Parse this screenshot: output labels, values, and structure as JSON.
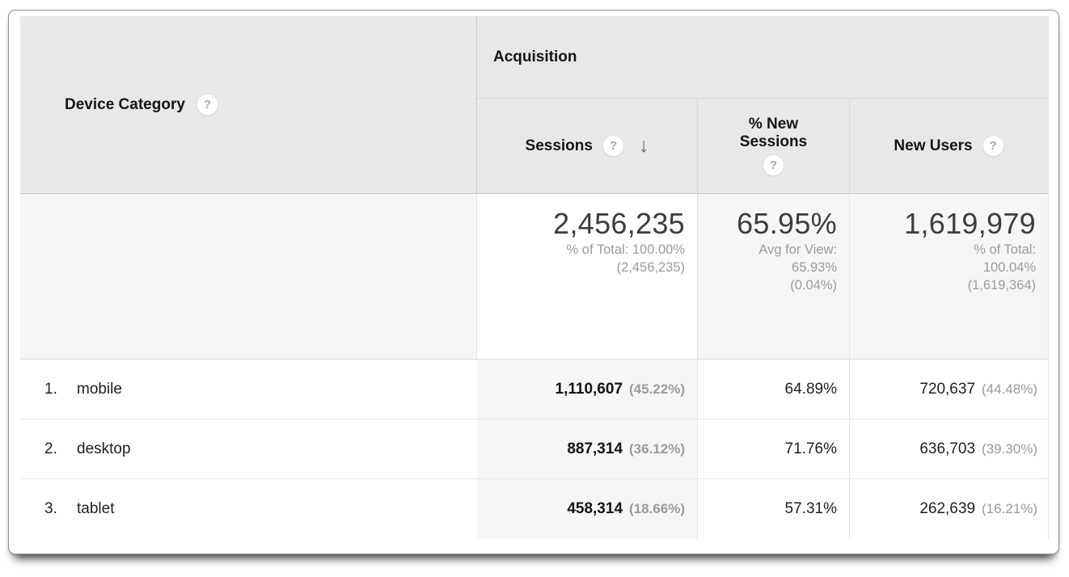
{
  "table": {
    "dimension_header": {
      "label": "Device Category",
      "help_icon": "?"
    },
    "group_header": {
      "label": "Acquisition"
    },
    "columns": {
      "sessions": {
        "label": "Sessions",
        "help_icon": "?",
        "sort_icon": "↓",
        "sort": "descending"
      },
      "new_sessions": {
        "label_line1": "% New",
        "label_line2": "Sessions",
        "help_icon": "?"
      },
      "new_users": {
        "label": "New Users",
        "help_icon": "?"
      }
    },
    "summary": {
      "sessions": {
        "value": "2,456,235",
        "sub": [
          "% of Total: 100.00%",
          "(2,456,235)"
        ]
      },
      "new_sessions": {
        "value": "65.95%",
        "sub": [
          "Avg for View:",
          "65.93%",
          "(0.04%)"
        ]
      },
      "new_users": {
        "value": "1,619,979",
        "sub": [
          "% of Total:",
          "100.04%",
          "(1,619,364)"
        ]
      }
    },
    "rows": [
      {
        "rank": "1.",
        "device": "mobile",
        "sessions": "1,110,607",
        "sessions_pct": "(45.22%)",
        "new_sessions_pct": "64.89%",
        "new_users": "720,637",
        "new_users_pct": "(44.48%)"
      },
      {
        "rank": "2.",
        "device": "desktop",
        "sessions": "887,314",
        "sessions_pct": "(36.12%)",
        "new_sessions_pct": "71.76%",
        "new_users": "636,703",
        "new_users_pct": "(39.30%)"
      },
      {
        "rank": "3.",
        "device": "tablet",
        "sessions": "458,314",
        "sessions_pct": "(18.66%)",
        "new_sessions_pct": "57.31%",
        "new_users": "262,639",
        "new_users_pct": "(16.21%)"
      }
    ]
  },
  "colors": {
    "header_bg": "#e8e8e8",
    "summary_bg": "#f6f6f6",
    "sorted_column_bg": "#f6f6f6",
    "muted_text": "#9b9b9b",
    "value_text": "#1f1f1f",
    "summary_value_text": "#3d3d3d"
  }
}
